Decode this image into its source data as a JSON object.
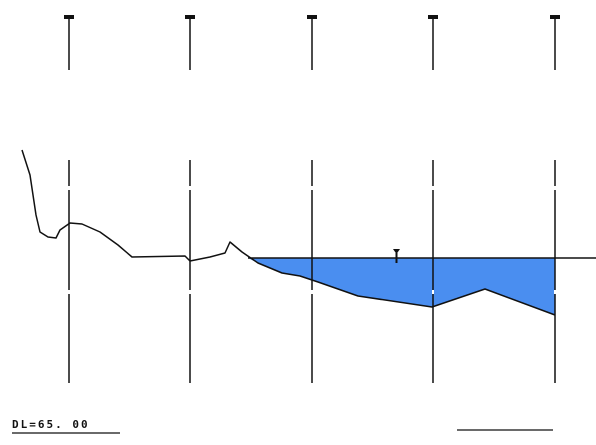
{
  "datum": {
    "label": "DL=65. 00"
  },
  "colors": {
    "line": "#111111",
    "water_fill": "#4a8ef0"
  },
  "icons": {
    "water_level": "water-level-marker-icon"
  }
}
